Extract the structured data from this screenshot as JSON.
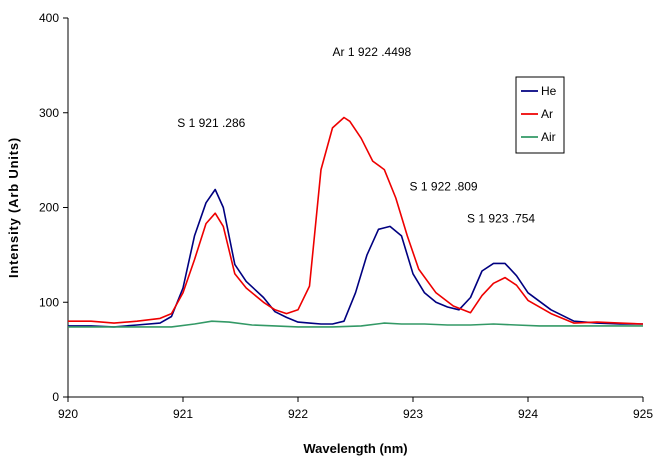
{
  "chart_data": {
    "type": "line",
    "title": "",
    "xlabel": "Wavelength (nm)",
    "ylabel": "Intensity (Arb Units)",
    "xlim": [
      920,
      925
    ],
    "ylim": [
      0,
      400
    ],
    "x_ticks": [
      920,
      921,
      922,
      923,
      924,
      925
    ],
    "y_ticks": [
      0,
      100,
      200,
      300,
      400
    ],
    "grid": false,
    "legend_position": "top-right",
    "annotations": [
      {
        "text": "Ar 1 922 .4498",
        "x": 922.3,
        "y": 360
      },
      {
        "text": "S 1  921 .286",
        "x": 920.95,
        "y": 285
      },
      {
        "text": "S 1 922 .809",
        "x": 922.97,
        "y": 218
      },
      {
        "text": "S 1  923 .754",
        "x": 923.47,
        "y": 184
      }
    ],
    "series": [
      {
        "name": "He",
        "color": "#000080",
        "x": [
          920.0,
          920.2,
          920.4,
          920.6,
          920.8,
          920.9,
          921.0,
          921.1,
          921.2,
          921.28,
          921.35,
          921.45,
          921.55,
          921.7,
          921.8,
          921.9,
          922.0,
          922.1,
          922.2,
          922.3,
          922.4,
          922.5,
          922.6,
          922.7,
          922.8,
          922.9,
          923.0,
          923.1,
          923.2,
          923.3,
          923.4,
          923.5,
          923.6,
          923.7,
          923.8,
          923.9,
          924.0,
          924.2,
          924.4,
          924.6,
          924.8,
          925.0
        ],
        "y": [
          75,
          75,
          74,
          76,
          78,
          85,
          115,
          170,
          205,
          219,
          200,
          140,
          122,
          105,
          90,
          84,
          79,
          78,
          77,
          77,
          80,
          110,
          150,
          177,
          180,
          170,
          130,
          110,
          100,
          95,
          92,
          105,
          133,
          141,
          141,
          128,
          110,
          92,
          80,
          78,
          77,
          77
        ]
      },
      {
        "name": "Ar",
        "color": "#ee0000",
        "x": [
          920.0,
          920.2,
          920.4,
          920.6,
          920.8,
          920.9,
          921.0,
          921.1,
          921.2,
          921.28,
          921.35,
          921.45,
          921.55,
          921.7,
          921.8,
          921.9,
          922.0,
          922.1,
          922.2,
          922.3,
          922.4,
          922.45,
          922.55,
          922.65,
          922.75,
          922.85,
          922.95,
          923.05,
          923.2,
          923.35,
          923.5,
          923.6,
          923.7,
          923.8,
          923.9,
          924.0,
          924.2,
          924.4,
          924.6,
          924.8,
          925.0
        ],
        "y": [
          80,
          80,
          78,
          80,
          83,
          88,
          110,
          145,
          183,
          194,
          180,
          130,
          115,
          100,
          92,
          88,
          92,
          117,
          240,
          284,
          295,
          291,
          273,
          249,
          240,
          210,
          170,
          135,
          110,
          96,
          89,
          107,
          120,
          126,
          118,
          102,
          88,
          78,
          79,
          78,
          77
        ]
      },
      {
        "name": "Air",
        "color": "#339966",
        "x": [
          920.0,
          920.3,
          920.6,
          920.9,
          921.1,
          921.25,
          921.4,
          921.6,
          921.8,
          922.0,
          922.3,
          922.55,
          922.75,
          922.9,
          923.1,
          923.3,
          923.5,
          923.7,
          923.9,
          924.1,
          924.4,
          924.7,
          925.0
        ],
        "y": [
          74,
          74,
          74,
          74,
          77,
          80,
          79,
          76,
          75,
          74,
          74,
          75,
          78,
          77,
          77,
          76,
          76,
          77,
          76,
          75,
          75,
          75,
          75
        ]
      }
    ]
  }
}
